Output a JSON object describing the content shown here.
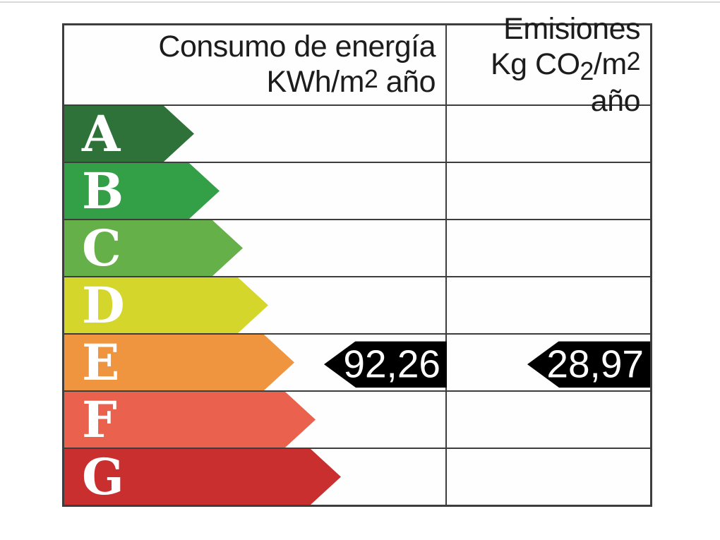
{
  "header": {
    "consumption": {
      "line1": "Consumo de energía",
      "line2_base": "KWh/m",
      "line2_sup": "2",
      "line2_rest": " año"
    },
    "emissions": {
      "line1": "Emisiones",
      "line2_p1": "Kg CO",
      "line2_sub": "2",
      "line2_p2": "/m",
      "line2_sup": "2",
      "line2_p3": " año"
    }
  },
  "ratings": [
    {
      "letter": "A",
      "color": "#2e7239"
    },
    {
      "letter": "B",
      "color": "#33a047"
    },
    {
      "letter": "C",
      "color": "#66b04a"
    },
    {
      "letter": "D",
      "color": "#d5d62b"
    },
    {
      "letter": "E",
      "color": "#f0953f"
    },
    {
      "letter": "F",
      "color": "#ea614d"
    },
    {
      "letter": "G",
      "color": "#c92f2e"
    }
  ],
  "markers": {
    "rating_row": "E",
    "consumption_value": "92,26",
    "emissions_value": "28,97",
    "marker_bg": "#000000",
    "marker_text_color": "#ffffff"
  },
  "colors": {
    "border": "#3d3d3d",
    "background": "#ffffff"
  },
  "chart_data": {
    "type": "bar",
    "title": "Etiqueta de calificación energética",
    "categories": [
      "A",
      "B",
      "C",
      "D",
      "E",
      "F",
      "G"
    ],
    "bar_colors": [
      "#2e7239",
      "#33a047",
      "#66b04a",
      "#d5d62b",
      "#f0953f",
      "#ea614d",
      "#c92f2e"
    ],
    "columns": [
      {
        "label_line1": "Consumo de energía",
        "label_line2": "KWh/m2 año",
        "rating": "E",
        "value_text": "92,26",
        "value_numeric": 92.26
      },
      {
        "label_line1": "Emisiones",
        "label_line2": "Kg CO2/m2 año",
        "rating": "E",
        "value_text": "28,97",
        "value_numeric": 28.97
      }
    ],
    "legend_position": "none",
    "grid": true
  }
}
